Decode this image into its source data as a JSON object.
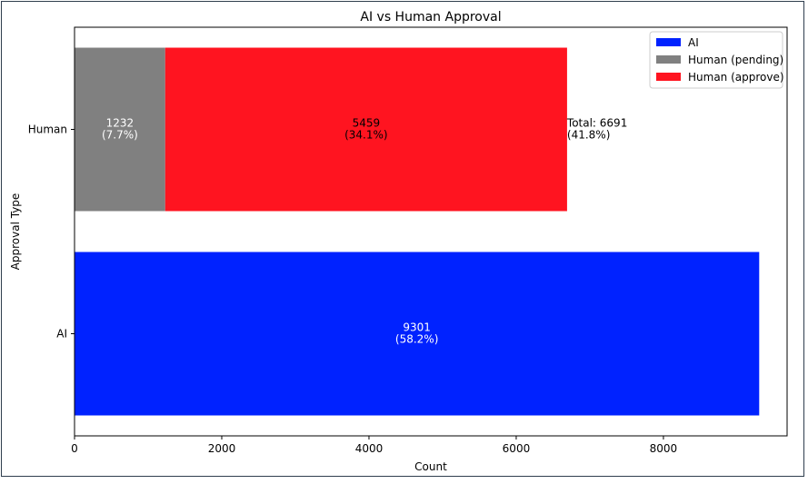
{
  "chart_data": {
    "type": "bar",
    "orientation": "horizontal",
    "stacked": true,
    "title": "AI vs Human Approval",
    "xlabel": "Count",
    "ylabel": "Approval Type",
    "categories": [
      "AI",
      "Human"
    ],
    "xlim": [
      0,
      9680
    ],
    "xticks": [
      0,
      2000,
      4000,
      6000,
      8000
    ],
    "grid": false,
    "legend_position": "top-right",
    "series": [
      {
        "name": "AI",
        "color": "#0022ff",
        "label_color": "#ffffff",
        "points": [
          {
            "category": "AI",
            "start": 0,
            "value": 9301,
            "label_value": "9301",
            "label_pct": "(58.2%)"
          }
        ]
      },
      {
        "name": "Human (pending)",
        "color": "#808080",
        "label_color": "#ffffff",
        "points": [
          {
            "category": "Human",
            "start": 0,
            "value": 1232,
            "label_value": "1232",
            "label_pct": "(7.7%)"
          }
        ]
      },
      {
        "name": "Human (approve)",
        "color": "#ff1420",
        "label_color": "#000000",
        "points": [
          {
            "category": "Human",
            "start": 1232,
            "value": 5459,
            "label_value": "5459",
            "label_pct": "(34.1%)"
          }
        ]
      }
    ],
    "totals": [
      {
        "category": "Human",
        "value": 6691,
        "label_value": "Total: 6691",
        "label_pct": "(41.8%)"
      }
    ]
  }
}
